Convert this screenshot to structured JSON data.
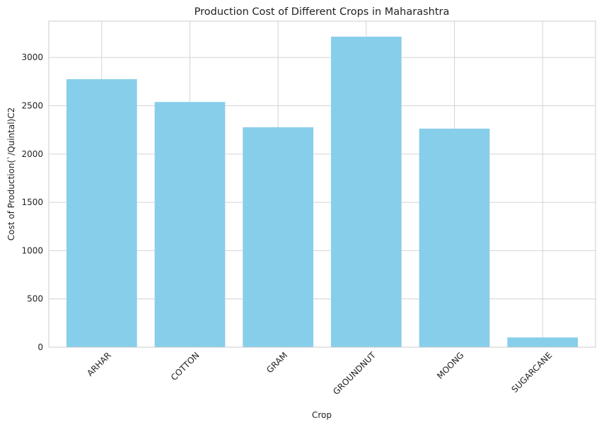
{
  "chart_data": {
    "type": "bar",
    "title": "Production Cost of Different Crops in Maharashtra",
    "xlabel": "Crop",
    "ylabel": "Cost of Production(`/Quintal)C2",
    "categories": [
      "ARHAR",
      "COTTON",
      "GRAM",
      "GROUNDNUT",
      "MOONG",
      "SUGARCANE"
    ],
    "values": [
      2775,
      2539,
      2277,
      3215,
      2263,
      101
    ],
    "ylim": [
      0,
      3375
    ],
    "yticks": [
      0,
      500,
      1000,
      1500,
      2000,
      2500,
      3000
    ],
    "bar_color": "#87CEEB",
    "grid": true
  }
}
